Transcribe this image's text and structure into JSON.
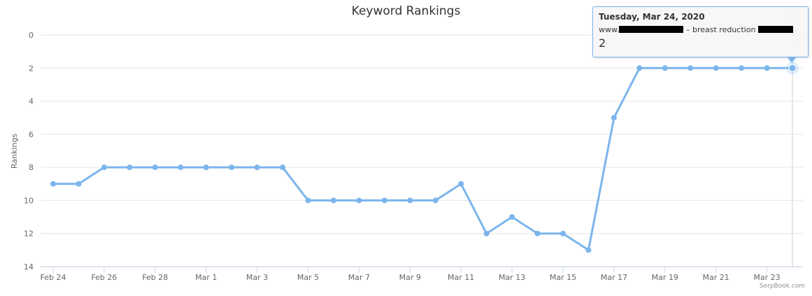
{
  "chart_data": {
    "type": "line",
    "title": "Keyword Rankings",
    "ylabel": "Rankings",
    "xlabel": "",
    "y_reversed": true,
    "ylim": [
      0,
      14
    ],
    "yticks": [
      0,
      2,
      4,
      6,
      8,
      10,
      12,
      14
    ],
    "grid": "horizontal",
    "x": [
      "Feb 24",
      "Feb 25",
      "Feb 26",
      "Feb 27",
      "Feb 28",
      "Feb 29",
      "Mar 1",
      "Mar 2",
      "Mar 3",
      "Mar 4",
      "Mar 5",
      "Mar 6",
      "Mar 7",
      "Mar 8",
      "Mar 9",
      "Mar 10",
      "Mar 11",
      "Mar 12",
      "Mar 13",
      "Mar 14",
      "Mar 15",
      "Mar 16",
      "Mar 17",
      "Mar 18",
      "Mar 19",
      "Mar 20",
      "Mar 21",
      "Mar 22",
      "Mar 23",
      "Mar 24"
    ],
    "xtick_labels": [
      "Feb 24",
      "Feb 26",
      "Feb 28",
      "Mar 1",
      "Mar 3",
      "Mar 5",
      "Mar 7",
      "Mar 9",
      "Mar 11",
      "Mar 13",
      "Mar 15",
      "Mar 17",
      "Mar 19",
      "Mar 21",
      "Mar 23"
    ],
    "series": [
      {
        "values": [
          9,
          9,
          8,
          8,
          8,
          8,
          8,
          8,
          8,
          8,
          10,
          10,
          10,
          10,
          10,
          10,
          9,
          12,
          11,
          12,
          12,
          13,
          5,
          2,
          2,
          2,
          2,
          2,
          2,
          2
        ],
        "color": "#7cb5ec"
      }
    ],
    "tooltip": {
      "date": "Tuesday, Mar 24, 2020",
      "site_prefix": "www.",
      "site_sep": "–",
      "keyword": "breast reduction",
      "value": "2"
    },
    "credit": "SerpBook.com"
  }
}
